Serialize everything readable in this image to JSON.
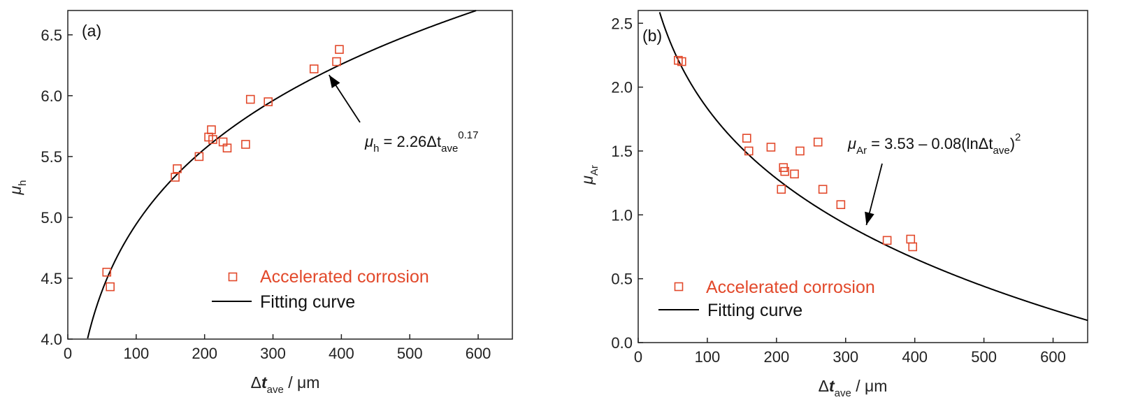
{
  "colors": {
    "marker": "#e2492b",
    "curve": "#000000",
    "axis": "#222222"
  },
  "chart_data": [
    {
      "type": "scatter",
      "panel_tag": "(a)",
      "xlabel_main": "Δt",
      "xlabel_sub": "ave",
      "xlabel_unit": "/ μm",
      "ylabel_main": "μ",
      "ylabel_sub": "h",
      "xlim": [
        0,
        650
      ],
      "ylim": [
        4.0,
        6.7
      ],
      "xticks": [
        "0",
        "100",
        "200",
        "300",
        "400",
        "500",
        "600"
      ],
      "yticks": [
        "4.0",
        "4.5",
        "5.0",
        "5.5",
        "6.0",
        "6.5"
      ],
      "series": [
        {
          "name": "Accelerated corrosion",
          "points": [
            [
              57,
              4.55
            ],
            [
              62,
              4.43
            ],
            [
              157,
              5.33
            ],
            [
              160,
              5.4
            ],
            [
              192,
              5.5
            ],
            [
              206,
              5.66
            ],
            [
              210,
              5.72
            ],
            [
              212,
              5.64
            ],
            [
              227,
              5.62
            ],
            [
              233,
              5.57
            ],
            [
              260,
              5.6
            ],
            [
              267,
              5.97
            ],
            [
              293,
              5.95
            ],
            [
              360,
              6.22
            ],
            [
              393,
              6.28
            ],
            [
              397,
              6.38
            ]
          ]
        },
        {
          "name": "Fitting curve",
          "model": "2.26 * x^0.17",
          "x_range": [
            28,
            650
          ]
        }
      ],
      "annotation": {
        "pre": "μ",
        "sub1": "h",
        "mid": " = 2.26Δt",
        "sub2": "ave",
        "sup": "0.17",
        "arrow_to": [
          382,
          6.17
        ]
      },
      "legend": {
        "position": "bottom-center"
      }
    },
    {
      "type": "scatter",
      "panel_tag": "(b)",
      "xlabel_main": "Δt",
      "xlabel_sub": "ave",
      "xlabel_unit": "/ μm",
      "ylabel_main": "μ",
      "ylabel_sub": "Ar",
      "xlim": [
        0,
        650
      ],
      "ylim": [
        0.0,
        2.6
      ],
      "xticks": [
        "0",
        "100",
        "200",
        "300",
        "400",
        "500",
        "600"
      ],
      "yticks": [
        "0.0",
        "0.5",
        "1.0",
        "1.5",
        "2.0",
        "2.5"
      ],
      "series": [
        {
          "name": "Accelerated corrosion",
          "points": [
            [
              58,
              2.21
            ],
            [
              63,
              2.2
            ],
            [
              157,
              1.6
            ],
            [
              160,
              1.5
            ],
            [
              192,
              1.53
            ],
            [
              207,
              1.2
            ],
            [
              210,
              1.37
            ],
            [
              212,
              1.34
            ],
            [
              226,
              1.32
            ],
            [
              234,
              1.5
            ],
            [
              260,
              1.57
            ],
            [
              267,
              1.2
            ],
            [
              293,
              1.08
            ],
            [
              360,
              0.8
            ],
            [
              394,
              0.81
            ],
            [
              397,
              0.75
            ]
          ]
        },
        {
          "name": "Fitting curve",
          "model": "3.53 - 0.08 * (ln x)^2",
          "x_range": [
            30,
            650
          ]
        }
      ],
      "annotation": {
        "pre": "μ",
        "sub1": "Ar",
        "mid": " = 3.53 – 0.08(lnΔt",
        "sub2": "ave",
        "close": ")",
        "sup": "2",
        "arrow_to": [
          330,
          0.92
        ]
      },
      "legend": {
        "position": "bottom-left"
      }
    }
  ]
}
